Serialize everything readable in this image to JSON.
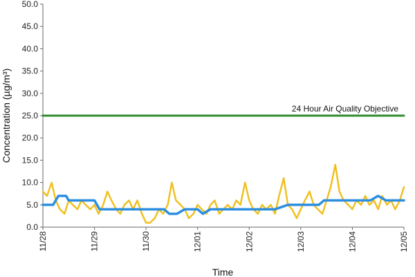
{
  "chart_data": {
    "type": "line",
    "title": "",
    "xlabel": "Time",
    "ylabel": "Concentration (µg/m³)",
    "ylim": [
      0,
      50
    ],
    "yticks": [
      "0.0",
      "5.0",
      "10.0",
      "15.0",
      "20.0",
      "25.0",
      "30.0",
      "35.0",
      "40.0",
      "45.0",
      "50.0"
    ],
    "xtick_labels": [
      "11/28",
      "11/29",
      "11/30",
      "12/01",
      "12/02",
      "12/03",
      "12/04",
      "12/05"
    ],
    "grid": false,
    "legend": "none",
    "annotations": [
      {
        "text": "24 Hour Air Quality Objective",
        "x": 7.0,
        "y": 25
      }
    ],
    "colors": {
      "hourly": "#f0c020",
      "daily": "#2b8ee0",
      "objective": "#2e8b2e"
    },
    "series": [
      {
        "style": "hourly",
        "x": [
          0,
          0.08,
          0.17,
          0.25,
          0.33,
          0.42,
          0.5,
          0.58,
          0.67,
          0.75,
          0.83,
          0.92,
          1.0,
          1.08,
          1.17,
          1.25,
          1.33,
          1.42,
          1.5,
          1.58,
          1.67,
          1.75,
          1.83,
          1.92,
          2.0,
          2.08,
          2.17,
          2.25,
          2.33,
          2.42,
          2.5,
          2.58,
          2.67,
          2.75,
          2.83,
          2.92,
          3.0,
          3.08,
          3.17,
          3.25,
          3.33,
          3.42,
          3.5,
          3.58,
          3.67,
          3.75,
          3.83,
          3.92,
          4.0,
          4.08,
          4.17,
          4.25,
          4.33,
          4.42,
          4.5,
          4.58,
          4.67,
          4.75,
          4.83,
          4.92,
          5.0,
          5.08,
          5.17,
          5.25,
          5.33,
          5.42,
          5.5,
          5.58,
          5.67,
          5.75,
          5.83,
          5.92,
          6.0,
          6.08,
          6.17,
          6.25,
          6.33,
          6.42,
          6.5,
          6.58,
          6.67,
          6.75,
          6.83,
          6.92,
          7.0
        ],
        "y": [
          8,
          7,
          10,
          6,
          4,
          3,
          6,
          5,
          4,
          6,
          5,
          4,
          5,
          3,
          5,
          8,
          6,
          4,
          3,
          5,
          6,
          4,
          6,
          3,
          1,
          1,
          2,
          4,
          3,
          5,
          10,
          6,
          5,
          4,
          2,
          3,
          5,
          4,
          3,
          5,
          6,
          3,
          4,
          5,
          4,
          6,
          5,
          10,
          6,
          4,
          3,
          5,
          4,
          5,
          3,
          7,
          11,
          5,
          4,
          2,
          4,
          6,
          8,
          5,
          4,
          3,
          6,
          9,
          14,
          8,
          6,
          5,
          4,
          6,
          5,
          7,
          5,
          6,
          4,
          7,
          5,
          6,
          4,
          6,
          9
        ]
      },
      {
        "style": "daily",
        "x": [
          0,
          0.2,
          0.3,
          0.45,
          0.5,
          1.0,
          1.1,
          1.5,
          2.0,
          2.2,
          2.35,
          2.45,
          2.6,
          2.75,
          2.85,
          3.0,
          3.1,
          3.25,
          3.6,
          3.9,
          4.0,
          4.3,
          4.5,
          4.75,
          4.9,
          5.0,
          5.2,
          5.35,
          5.45,
          5.6,
          5.8,
          6.0,
          6.2,
          6.35,
          6.5,
          6.65,
          7.0
        ],
        "y": [
          5,
          5,
          7,
          7,
          6,
          6,
          4,
          4,
          4,
          4,
          4,
          3,
          3,
          4,
          4,
          4,
          3,
          4,
          4,
          4,
          4,
          4,
          4,
          5,
          5,
          5,
          5,
          5,
          6,
          6,
          6,
          6,
          6,
          6,
          7,
          6,
          6
        ]
      },
      {
        "style": "objective",
        "x": [
          0,
          7
        ],
        "y": [
          25,
          25
        ]
      }
    ]
  }
}
